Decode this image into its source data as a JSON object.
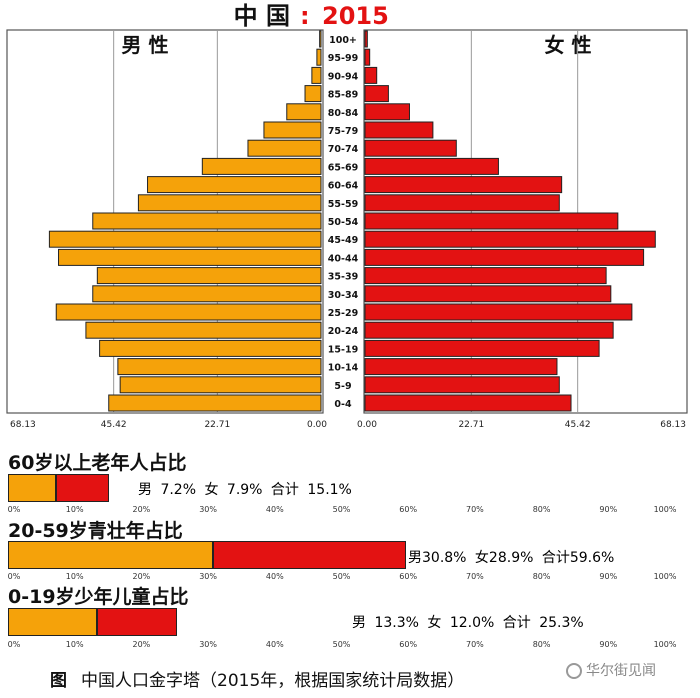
{
  "chart_data": [
    {
      "type": "bar",
      "orientation": "horizontal-mirrored",
      "title_prefix": "中 国",
      "title_sep": ":",
      "title_year": "2015",
      "left_label": "男 性",
      "right_label": "女 性",
      "categories": [
        "100+",
        "95-99",
        "90-94",
        "85-89",
        "80-84",
        "75-79",
        "70-74",
        "65-69",
        "60-64",
        "55-59",
        "50-54",
        "45-49",
        "40-44",
        "35-39",
        "30-34",
        "25-29",
        "20-24",
        "15-19",
        "10-14",
        "5-9",
        "0-4"
      ],
      "series": [
        {
          "name": "男 性",
          "values": [
            0.3,
            0.9,
            2.0,
            3.5,
            7.5,
            12.5,
            16.0,
            26.0,
            38.0,
            40.0,
            50.0,
            59.5,
            57.5,
            49.0,
            50.0,
            58.0,
            51.5,
            48.5,
            44.5,
            44.0,
            46.5
          ]
        },
        {
          "name": "女 性",
          "values": [
            0.5,
            1.0,
            2.5,
            5.0,
            9.5,
            14.5,
            19.5,
            28.5,
            42.0,
            41.5,
            54.0,
            62.0,
            59.5,
            51.5,
            52.5,
            57.0,
            53.0,
            50.0,
            41.0,
            41.5,
            44.0
          ]
        }
      ],
      "xlim": [
        0,
        68.13
      ],
      "x_tick_labels_left": [
        "68.13",
        "45.42",
        "22.71",
        "0.00"
      ],
      "x_tick_labels_right": [
        "0.00",
        "22.71",
        "45.42",
        "68.13"
      ],
      "colors": {
        "male": "#f5a20a",
        "female": "#e31212"
      }
    },
    {
      "type": "bar",
      "orientation": "horizontal-stacked",
      "title": "60岁以上老年人占比",
      "categories": [
        "男",
        "女"
      ],
      "values": [
        7.2,
        7.9
      ],
      "total": 15.1,
      "text": "男 7.2% 女 7.9% 合计 15.1%",
      "xlim": [
        0,
        100
      ],
      "tick_labels": [
        "0%",
        "10%",
        "20%",
        "30%",
        "40%",
        "50%",
        "60%",
        "70%",
        "80%",
        "90%",
        "100%"
      ]
    },
    {
      "type": "bar",
      "orientation": "horizontal-stacked",
      "title": "20-59岁青壮年占比",
      "categories": [
        "男",
        "女"
      ],
      "values": [
        30.8,
        28.9
      ],
      "total": 59.6,
      "text": "男30.8% 女28.9% 合计59.6%",
      "xlim": [
        0,
        100
      ],
      "tick_labels": [
        "0%",
        "10%",
        "20%",
        "30%",
        "40%",
        "50%",
        "60%",
        "70%",
        "80%",
        "90%",
        "100%"
      ]
    },
    {
      "type": "bar",
      "orientation": "horizontal-stacked",
      "title": "0-19岁少年儿童占比",
      "categories": [
        "男",
        "女"
      ],
      "values": [
        13.3,
        12.0
      ],
      "total": 25.3,
      "text": "男 13.3% 女 12.0% 合计 25.3%",
      "xlim": [
        0,
        100
      ],
      "tick_labels": [
        "0%",
        "10%",
        "20%",
        "30%",
        "40%",
        "50%",
        "60%",
        "70%",
        "80%",
        "90%",
        "100%"
      ]
    }
  ],
  "caption": {
    "fig_label": "图",
    "text": "中国人口金字塔（2015年，根据国家统计局数据）"
  },
  "watermark": "华尔街见闻"
}
